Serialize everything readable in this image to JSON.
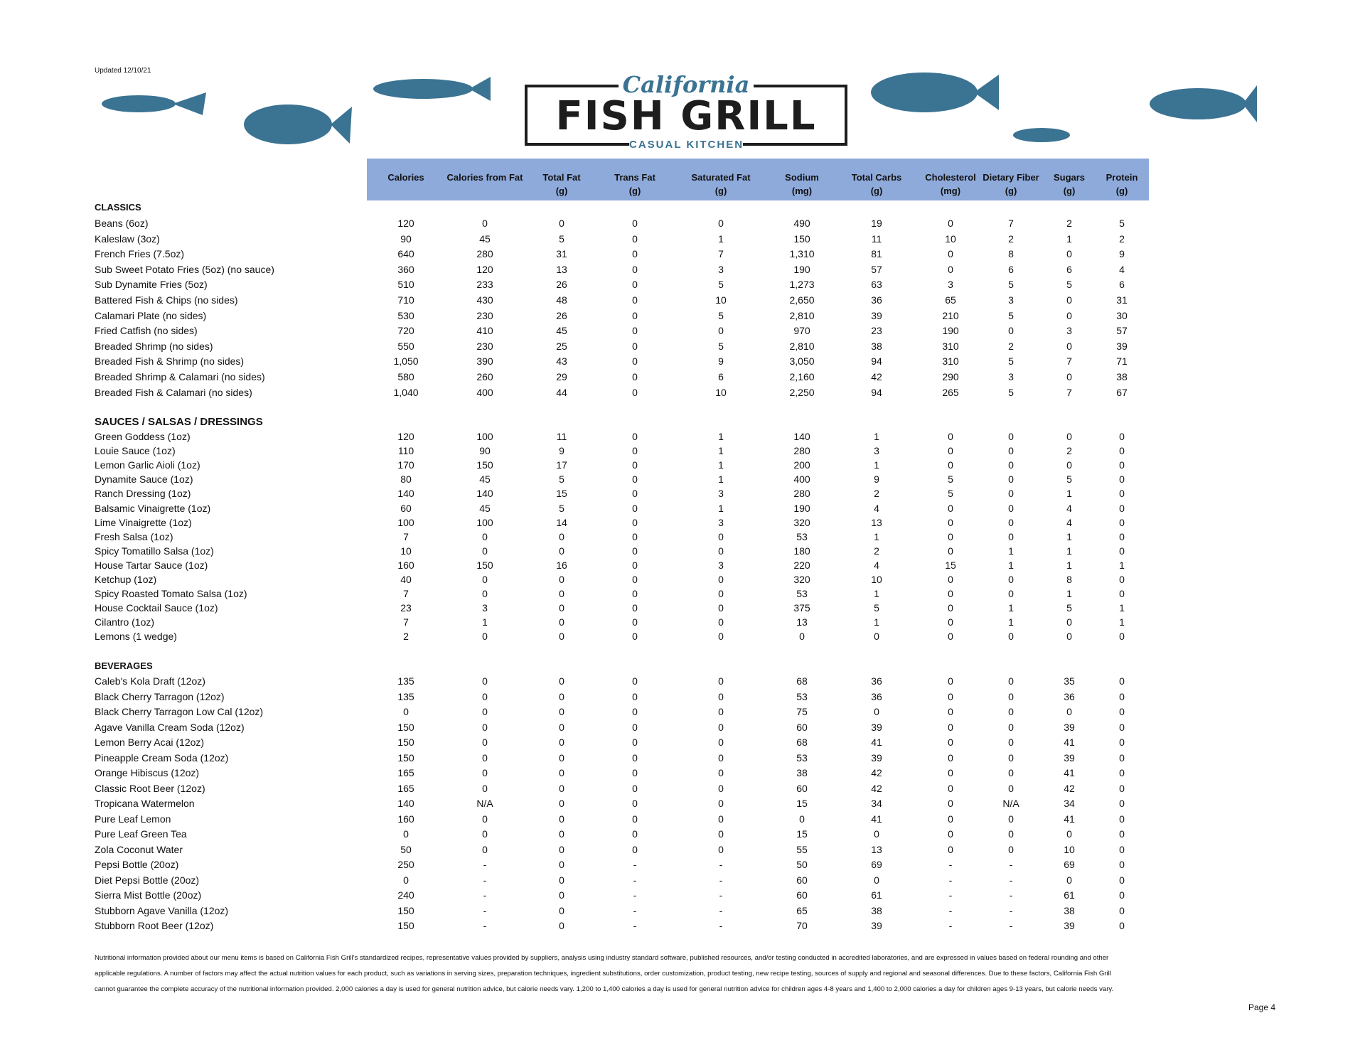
{
  "header": {
    "updated": "Updated 12/10/21",
    "logo": {
      "script": "California",
      "name": "FISH GRILL",
      "tagline": "CASUAL KITCHEN"
    }
  },
  "table": {
    "columns": [
      [
        "Calories"
      ],
      [
        "Calories from Fat"
      ],
      [
        "Total Fat",
        "(g)"
      ],
      [
        "Trans Fat",
        "(g)"
      ],
      [
        "Saturated Fat",
        "(g)"
      ],
      [
        "Sodium",
        "(mg)"
      ],
      [
        "Total Carbs",
        "(g)"
      ],
      [
        "Cholesterol",
        "(mg)"
      ],
      [
        "Dietary Fiber",
        "(g)"
      ],
      [
        "Sugars",
        "(g)"
      ],
      [
        "Protein",
        "(g)"
      ]
    ],
    "sections": [
      {
        "title": "CLASSICS",
        "rows": [
          [
            "Beans (6oz)",
            "120",
            "0",
            "0",
            "0",
            "0",
            "490",
            "19",
            "0",
            "7",
            "2",
            "5"
          ],
          [
            "Kaleslaw (3oz)",
            "90",
            "45",
            "5",
            "0",
            "1",
            "150",
            "11",
            "10",
            "2",
            "1",
            "2"
          ],
          [
            "French Fries (7.5oz)",
            "640",
            "280",
            "31",
            "0",
            "7",
            "1,310",
            "81",
            "0",
            "8",
            "0",
            "9"
          ],
          [
            "Sub Sweet Potato Fries (5oz) (no sauce)",
            "360",
            "120",
            "13",
            "0",
            "3",
            "190",
            "57",
            "0",
            "6",
            "6",
            "4"
          ],
          [
            "Sub Dynamite Fries (5oz)",
            "510",
            "233",
            "26",
            "0",
            "5",
            "1,273",
            "63",
            "3",
            "5",
            "5",
            "6"
          ],
          [
            "Battered Fish & Chips (no sides)",
            "710",
            "430",
            "48",
            "0",
            "10",
            "2,650",
            "36",
            "65",
            "3",
            "0",
            "31"
          ],
          [
            "Calamari Plate (no sides)",
            "530",
            "230",
            "26",
            "0",
            "5",
            "2,810",
            "39",
            "210",
            "5",
            "0",
            "30"
          ],
          [
            "Fried Catfish (no sides)",
            "720",
            "410",
            "45",
            "0",
            "0",
            "970",
            "23",
            "190",
            "0",
            "3",
            "57"
          ],
          [
            "Breaded Shrimp (no sides)",
            "550",
            "230",
            "25",
            "0",
            "5",
            "2,810",
            "38",
            "310",
            "2",
            "0",
            "39"
          ],
          [
            "Breaded Fish & Shrimp (no sides)",
            "1,050",
            "390",
            "43",
            "0",
            "9",
            "3,050",
            "94",
            "310",
            "5",
            "7",
            "71"
          ],
          [
            "Breaded Shrimp & Calamari (no sides)",
            "580",
            "260",
            "29",
            "0",
            "6",
            "2,160",
            "42",
            "290",
            "3",
            "0",
            "38"
          ],
          [
            "Breaded Fish & Calamari (no sides)",
            "1,040",
            "400",
            "44",
            "0",
            "10",
            "2,250",
            "94",
            "265",
            "5",
            "7",
            "67"
          ]
        ]
      },
      {
        "title": "SAUCES / SALSAS / DRESSINGS",
        "rows": [
          [
            "Green Goddess (1oz)",
            "120",
            "100",
            "11",
            "0",
            "1",
            "140",
            "1",
            "0",
            "0",
            "0",
            "0"
          ],
          [
            "Louie Sauce (1oz)",
            "110",
            "90",
            "9",
            "0",
            "1",
            "280",
            "3",
            "0",
            "0",
            "2",
            "0"
          ],
          [
            "Lemon Garlic Aioli (1oz)",
            "170",
            "150",
            "17",
            "0",
            "1",
            "200",
            "1",
            "0",
            "0",
            "0",
            "0"
          ],
          [
            "Dynamite Sauce (1oz)",
            "80",
            "45",
            "5",
            "0",
            "1",
            "400",
            "9",
            "5",
            "0",
            "5",
            "0"
          ],
          [
            "Ranch Dressing (1oz)",
            "140",
            "140",
            "15",
            "0",
            "3",
            "280",
            "2",
            "5",
            "0",
            "1",
            "0"
          ],
          [
            "Balsamic Vinaigrette (1oz)",
            "60",
            "45",
            "5",
            "0",
            "1",
            "190",
            "4",
            "0",
            "0",
            "4",
            "0"
          ],
          [
            "Lime Vinaigrette (1oz)",
            "100",
            "100",
            "14",
            "0",
            "3",
            "320",
            "13",
            "0",
            "0",
            "4",
            "0"
          ],
          [
            "Fresh Salsa (1oz)",
            "7",
            "0",
            "0",
            "0",
            "0",
            "53",
            "1",
            "0",
            "0",
            "1",
            "0"
          ],
          [
            "Spicy Tomatillo Salsa (1oz)",
            "10",
            "0",
            "0",
            "0",
            "0",
            "180",
            "2",
            "0",
            "1",
            "1",
            "0"
          ],
          [
            "House Tartar Sauce (1oz)",
            "160",
            "150",
            "16",
            "0",
            "3",
            "220",
            "4",
            "15",
            "1",
            "1",
            "1"
          ],
          [
            "Ketchup (1oz)",
            "40",
            "0",
            "0",
            "0",
            "0",
            "320",
            "10",
            "0",
            "0",
            "8",
            "0"
          ],
          [
            "Spicy Roasted Tomato Salsa (1oz)",
            "7",
            "0",
            "0",
            "0",
            "0",
            "53",
            "1",
            "0",
            "0",
            "1",
            "0"
          ],
          [
            "House Cocktail Sauce (1oz)",
            "23",
            "3",
            "0",
            "0",
            "0",
            "375",
            "5",
            "0",
            "1",
            "5",
            "1"
          ],
          [
            "Cilantro (1oz)",
            "7",
            "1",
            "0",
            "0",
            "0",
            "13",
            "1",
            "0",
            "1",
            "0",
            "1"
          ],
          [
            "Lemons (1 wedge)",
            "2",
            "0",
            "0",
            "0",
            "0",
            "0",
            "0",
            "0",
            "0",
            "0",
            "0"
          ]
        ]
      },
      {
        "title": "BEVERAGES",
        "rows": [
          [
            "Caleb's Kola Draft (12oz)",
            "135",
            "0",
            "0",
            "0",
            "0",
            "68",
            "36",
            "0",
            "0",
            "35",
            "0"
          ],
          [
            "Black Cherry Tarragon (12oz)",
            "135",
            "0",
            "0",
            "0",
            "0",
            "53",
            "36",
            "0",
            "0",
            "36",
            "0"
          ],
          [
            "Black Cherry Tarragon Low Cal (12oz)",
            "0",
            "0",
            "0",
            "0",
            "0",
            "75",
            "0",
            "0",
            "0",
            "0",
            "0"
          ],
          [
            "Agave Vanilla Cream Soda (12oz)",
            "150",
            "0",
            "0",
            "0",
            "0",
            "60",
            "39",
            "0",
            "0",
            "39",
            "0"
          ],
          [
            "Lemon Berry Acai (12oz)",
            "150",
            "0",
            "0",
            "0",
            "0",
            "68",
            "41",
            "0",
            "0",
            "41",
            "0"
          ],
          [
            "Pineapple Cream Soda (12oz)",
            "150",
            "0",
            "0",
            "0",
            "0",
            "53",
            "39",
            "0",
            "0",
            "39",
            "0"
          ],
          [
            "Orange Hibiscus (12oz)",
            "165",
            "0",
            "0",
            "0",
            "0",
            "38",
            "42",
            "0",
            "0",
            "41",
            "0"
          ],
          [
            "Classic Root Beer (12oz)",
            "165",
            "0",
            "0",
            "0",
            "0",
            "60",
            "42",
            "0",
            "0",
            "42",
            "0"
          ],
          [
            "Tropicana Watermelon",
            "140",
            "N/A",
            "0",
            "0",
            "0",
            "15",
            "34",
            "0",
            "N/A",
            "34",
            "0"
          ],
          [
            "Pure Leaf Lemon",
            "160",
            "0",
            "0",
            "0",
            "0",
            "0",
            "41",
            "0",
            "0",
            "41",
            "0"
          ],
          [
            "Pure Leaf Green Tea",
            "0",
            "0",
            "0",
            "0",
            "0",
            "15",
            "0",
            "0",
            "0",
            "0",
            "0"
          ],
          [
            "Zola Coconut Water",
            "50",
            "0",
            "0",
            "0",
            "0",
            "55",
            "13",
            "0",
            "0",
            "10",
            "0"
          ],
          [
            "Pepsi Bottle (20oz)",
            "250",
            "-",
            "0",
            "-",
            "-",
            "50",
            "69",
            "-",
            "-",
            "69",
            "0"
          ],
          [
            "Diet Pepsi Bottle (20oz)",
            "0",
            "-",
            "0",
            "-",
            "-",
            "60",
            "0",
            "-",
            "-",
            "0",
            "0"
          ],
          [
            "Sierra Mist Bottle (20oz)",
            "240",
            "-",
            "0",
            "-",
            "-",
            "60",
            "61",
            "-",
            "-",
            "61",
            "0"
          ],
          [
            "Stubborn Agave Vanilla (12oz)",
            "150",
            "-",
            "0",
            "-",
            "-",
            "65",
            "38",
            "-",
            "-",
            "38",
            "0"
          ],
          [
            "Stubborn Root Beer (12oz)",
            "150",
            "-",
            "0",
            "-",
            "-",
            "70",
            "39",
            "-",
            "-",
            "39",
            "0"
          ]
        ]
      }
    ]
  },
  "footer": {
    "disclaimer": [
      "Nutritional information provided about our menu items is based on California Fish Grill's standardized recipes, representative values provided by suppliers, analysis using industry standard software, published resources, and/or testing conducted in accredited laboratories, and are expressed in values based on federal rounding and other",
      "applicable regulations.  A number of factors may affect the actual nutrition values for each product, such as variations in serving sizes, preparation techniques, ingredient substitutions, order customization, product testing, new recipe testing, sources of supply and regional and seasonal differences.  Due to these factors, California Fish Grill",
      "cannot guarantee the complete accuracy of the nutritional information provided.  2,000 calories a day is used for general nutrition advice, but calorie needs vary.  1,200 to 1,400 calories a day is used for general nutrition advice for children ages 4-8 years and 1,400 to 2,000 calories a day for children ages 9-13 years, but calorie needs vary."
    ],
    "page": "Page 4"
  }
}
